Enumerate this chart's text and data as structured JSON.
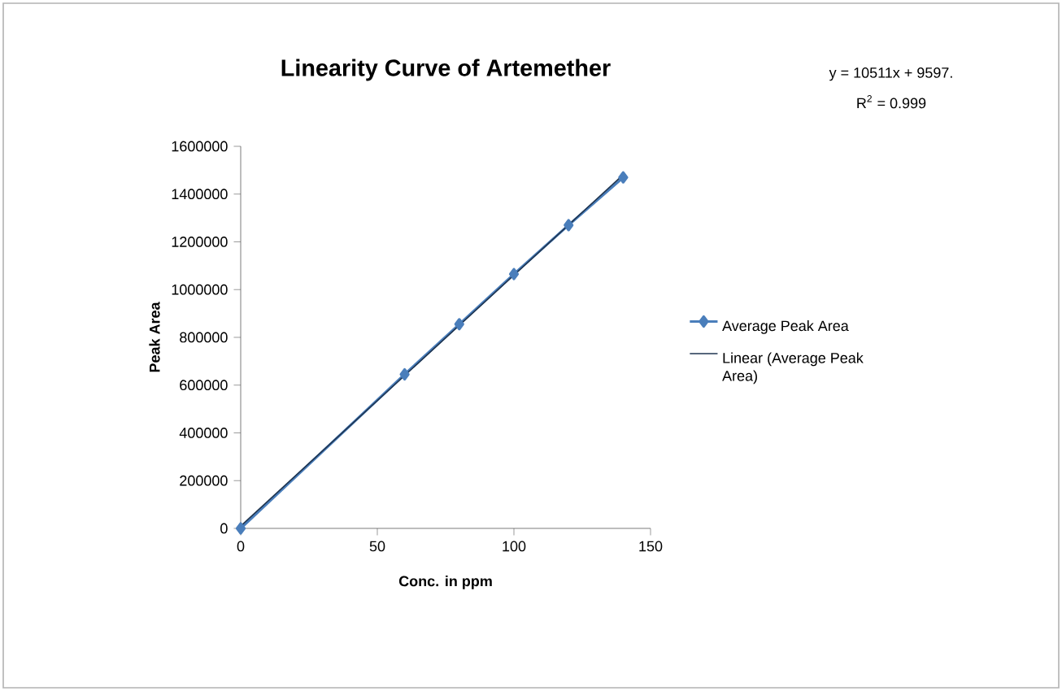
{
  "chart_data": {
    "type": "line",
    "title": "Linearity Curve of Artemether",
    "xlabel": "Conc. in ppm",
    "ylabel": "Peak Area",
    "xlim": [
      0,
      150
    ],
    "xticks": [
      0,
      50,
      100,
      150
    ],
    "ylim": [
      0,
      1600000
    ],
    "yticks": [
      0,
      200000,
      400000,
      600000,
      800000,
      1000000,
      1200000,
      1400000,
      1600000
    ],
    "grid": false,
    "legend": "right",
    "marker": "diamond",
    "series": [
      {
        "name": "Average  Peak Area",
        "color": "#4a7ebb",
        "x": [
          0,
          60,
          80,
          100,
          120,
          140
        ],
        "values": [
          0,
          645000,
          855000,
          1065000,
          1270000,
          1470000
        ]
      },
      {
        "name": "Linear (Average  Peak Area)",
        "color": "#1f3550",
        "marker": "none",
        "x": [
          0,
          140
        ],
        "values": [
          9597,
          1481137
        ]
      }
    ],
    "annotations": [
      "y = 10511x + 9597.",
      "R$^{2}$ = 0.999"
    ]
  }
}
